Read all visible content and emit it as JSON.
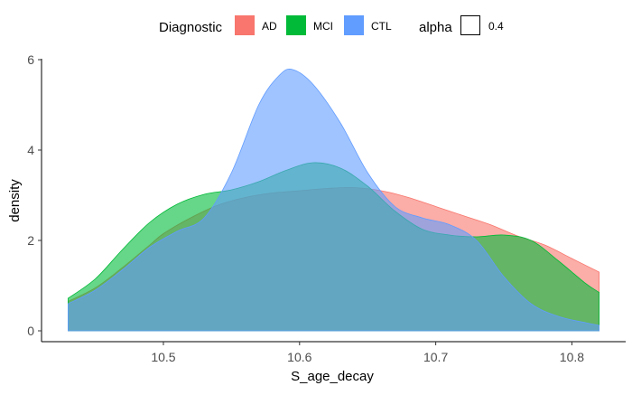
{
  "chart_data": {
    "type": "area",
    "subtype": "density",
    "xlabel": "S_age_decay",
    "ylabel": "density",
    "xlim": [
      10.43,
      10.82
    ],
    "ylim": [
      0,
      6
    ],
    "x_ticks": [
      10.5,
      10.6,
      10.7,
      10.8
    ],
    "x_tick_labels": [
      "10.5",
      "10.6",
      "10.7",
      "10.8"
    ],
    "y_ticks": [
      0,
      2,
      4,
      6
    ],
    "y_tick_labels": [
      "0",
      "2",
      "4",
      "6"
    ],
    "grid": false,
    "legend_position": "top",
    "legend": {
      "fill_title": "Diagnostic",
      "alpha_title": "alpha",
      "alpha_value_label": "0.4"
    },
    "series": [
      {
        "name": "AD",
        "color": "#F8766D",
        "x": [
          10.43,
          10.45,
          10.47,
          10.49,
          10.5,
          10.52,
          10.54,
          10.56,
          10.58,
          10.6,
          10.62,
          10.64,
          10.66,
          10.68,
          10.7,
          10.72,
          10.74,
          10.76,
          10.78,
          10.8,
          10.82
        ],
        "y": [
          0.65,
          0.95,
          1.4,
          1.9,
          2.15,
          2.5,
          2.78,
          2.95,
          3.05,
          3.1,
          3.15,
          3.17,
          3.1,
          2.95,
          2.75,
          2.55,
          2.35,
          2.1,
          1.9,
          1.6,
          1.3
        ]
      },
      {
        "name": "MCI",
        "color": "#00BA38",
        "x": [
          10.43,
          10.45,
          10.47,
          10.49,
          10.51,
          10.53,
          10.55,
          10.57,
          10.59,
          10.61,
          10.63,
          10.65,
          10.67,
          10.69,
          10.71,
          10.73,
          10.75,
          10.77,
          10.79,
          10.81,
          10.82
        ],
        "y": [
          0.72,
          1.15,
          1.8,
          2.4,
          2.8,
          3.02,
          3.12,
          3.3,
          3.55,
          3.72,
          3.6,
          3.2,
          2.65,
          2.25,
          2.12,
          2.08,
          2.12,
          2.0,
          1.55,
          1.05,
          0.85
        ]
      },
      {
        "name": "CTL",
        "color": "#619CFF",
        "x": [
          10.43,
          10.45,
          10.47,
          10.49,
          10.51,
          10.53,
          10.55,
          10.57,
          10.585,
          10.595,
          10.61,
          10.63,
          10.65,
          10.67,
          10.69,
          10.71,
          10.73,
          10.75,
          10.77,
          10.79,
          10.81,
          10.82
        ],
        "y": [
          0.6,
          0.9,
          1.35,
          1.85,
          2.2,
          2.5,
          3.5,
          5.0,
          5.65,
          5.78,
          5.45,
          4.6,
          3.5,
          2.75,
          2.5,
          2.35,
          2.0,
          1.2,
          0.6,
          0.32,
          0.18,
          0.12
        ]
      }
    ]
  }
}
